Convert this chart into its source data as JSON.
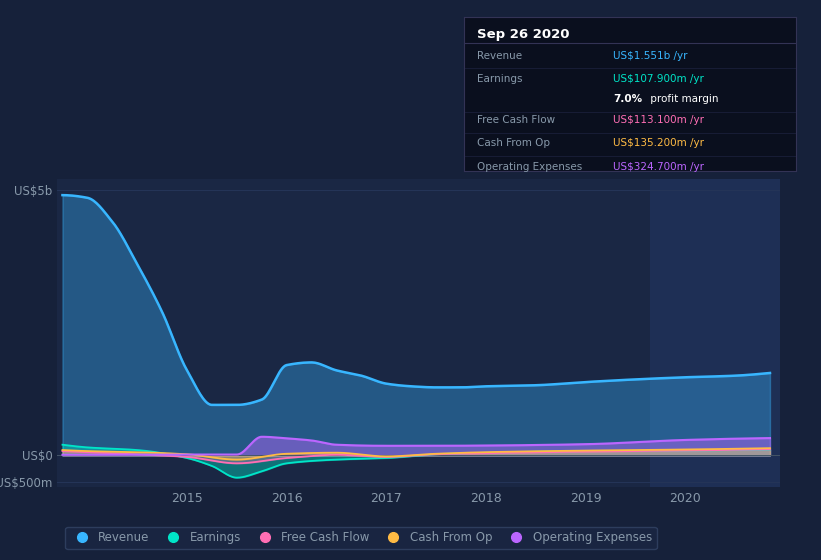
{
  "bg_color": "#16213a",
  "plot_bg_color": "#1a2744",
  "highlight_bg_color": "#1e2f55",
  "grid_color": "#253558",
  "text_color": "#8899aa",
  "title_color": "#ffffff",
  "y_label_top": "US$5b",
  "y_label_zero": "US$0",
  "y_label_neg": "-US$500m",
  "x_ticks": [
    2015,
    2016,
    2017,
    2018,
    2019,
    2020
  ],
  "series_colors": {
    "revenue": "#38b6ff",
    "earnings": "#00e5c8",
    "free_cash_flow": "#ff6eb4",
    "cash_from_op": "#ffbb44",
    "operating_expenses": "#bb66ff"
  },
  "legend_labels": [
    "Revenue",
    "Earnings",
    "Free Cash Flow",
    "Cash From Op",
    "Operating Expenses"
  ],
  "info_box": {
    "title": "Sep 26 2020",
    "bg_color": "#0a0f1e",
    "border_color": "#333355",
    "rows": [
      {
        "label": "Revenue",
        "value": "US$1.551b /yr",
        "value_color": "#38b6ff",
        "bold_part": ""
      },
      {
        "label": "Earnings",
        "value": "US$107.900m /yr",
        "value_color": "#00e5c8",
        "bold_part": ""
      },
      {
        "label": "",
        "value": "7.0% profit margin",
        "value_color": "#ffffff",
        "bold_part": "7.0%"
      },
      {
        "label": "Free Cash Flow",
        "value": "US$113.100m /yr",
        "value_color": "#ff6eb4",
        "bold_part": ""
      },
      {
        "label": "Cash From Op",
        "value": "US$135.200m /yr",
        "value_color": "#ffbb44",
        "bold_part": ""
      },
      {
        "label": "Operating Expenses",
        "value": "US$324.700m /yr",
        "value_color": "#bb66ff",
        "bold_part": ""
      }
    ]
  },
  "ylim": [
    -600,
    5200
  ],
  "xlim_start": 2013.7,
  "xlim_end": 2020.95,
  "highlight_start": 2019.65,
  "highlight_end": 2020.95
}
